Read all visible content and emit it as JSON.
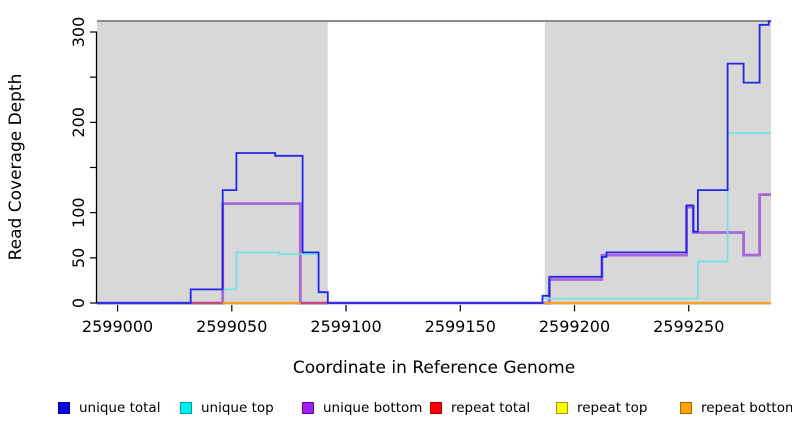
{
  "chart_data": {
    "type": "line",
    "subtype": "step-coverage",
    "xlabel": "Coordinate in Reference Genome",
    "ylabel": "Read Coverage Depth",
    "panel_bg": "#d8d8d8",
    "panel_border_top": "#6a6a6a",
    "masked_region": {
      "x_start": 2599092,
      "x_end": 2599187,
      "color": "#ffffff"
    },
    "x_scale": {
      "domain": [
        2598991,
        2599286
      ],
      "range": [
        97,
        771
      ]
    },
    "y_scale": {
      "domain": [
        0,
        300
      ],
      "range": [
        303,
        32
      ]
    },
    "x_ticks": [
      {
        "v": 2599000,
        "label": "2599000"
      },
      {
        "v": 2599050,
        "label": "2599050"
      },
      {
        "v": 2599100,
        "label": "2599100"
      },
      {
        "v": 2599150,
        "label": "2599150"
      },
      {
        "v": 2599200,
        "label": "2599200"
      },
      {
        "v": 2599250,
        "label": "2599250"
      }
    ],
    "y_ticks": [
      {
        "v": 0,
        "label": "0"
      },
      {
        "v": 50,
        "label": "50"
      },
      {
        "v": 100,
        "label": "100"
      },
      {
        "v": 150,
        "label": ""
      },
      {
        "v": 200,
        "label": "200"
      },
      {
        "v": 250,
        "label": ""
      },
      {
        "v": 300,
        "label": "300"
      }
    ],
    "draw_order": [
      "unique_bottom",
      "repeat_total",
      "repeat_top",
      "repeat_bottom",
      "unique_top",
      "unique_total"
    ],
    "series": {
      "unique_total": {
        "name": "unique total",
        "color": "#2525e8",
        "width": 1.8,
        "segments": [
          [
            [
              2598991,
              0
            ],
            [
              2599032,
              15
            ],
            [
              2599046,
              125
            ],
            [
              2599052,
              166
            ],
            [
              2599069,
              163
            ],
            [
              2599081,
              56
            ],
            [
              2599088,
              12
            ],
            [
              2599092,
              0
            ],
            [
              2599186,
              8
            ],
            [
              2599189,
              29
            ],
            [
              2599212,
              51
            ],
            [
              2599214,
              56
            ],
            [
              2599249,
              108
            ],
            [
              2599252,
              79
            ],
            [
              2599254,
              125
            ],
            [
              2599267,
              265
            ],
            [
              2599274,
              244
            ],
            [
              2599281,
              308
            ],
            [
              2599285,
              312
            ],
            [
              2599286,
              312
            ]
          ]
        ]
      },
      "unique_top": {
        "name": "unique top",
        "color": "#6ae4e4",
        "width": 1.6,
        "segments": [
          [
            [
              2598991,
              0
            ],
            [
              2599032,
              15
            ],
            [
              2599052,
              56
            ],
            [
              2599071,
              54
            ],
            [
              2599088,
              12
            ],
            [
              2599092,
              0
            ]
          ],
          [
            [
              2599186,
              5
            ],
            [
              2599254,
              46
            ],
            [
              2599267,
              188
            ],
            [
              2599286,
              188
            ]
          ]
        ]
      },
      "unique_bottom": {
        "name": "unique bottom",
        "color": "#a668d8",
        "width": 2.8,
        "segments": [
          [
            [
              2598991,
              0
            ],
            [
              2599046,
              110
            ],
            [
              2599080,
              0
            ],
            [
              2599189,
              26
            ],
            [
              2599212,
              53
            ],
            [
              2599249,
              106
            ],
            [
              2599252,
              78
            ],
            [
              2599274,
              53
            ],
            [
              2599281,
              120
            ],
            [
              2599286,
              120
            ]
          ]
        ]
      },
      "repeat_total": {
        "name": "repeat total",
        "color": "#cc4466",
        "width": 1.8,
        "segments": [
          [
            [
              2599032,
              0
            ],
            [
              2599092,
              0
            ]
          ]
        ]
      },
      "repeat_top": {
        "name": "repeat top",
        "color": "#ffff00",
        "width": 1.6,
        "segments": [
          [
            [
              2599046,
              0
            ],
            [
              2599080,
              0
            ]
          ],
          [
            [
              2599187,
              0
            ],
            [
              2599286,
              0
            ]
          ]
        ]
      },
      "repeat_bottom": {
        "name": "repeat bottom",
        "color": "#ffa022",
        "width": 2.2,
        "segments": [
          [
            [
              2599046,
              0
            ],
            [
              2599080,
              0
            ]
          ],
          [
            [
              2599187,
              0
            ],
            [
              2599286,
              0
            ]
          ]
        ]
      }
    },
    "legend": [
      {
        "label": "unique total",
        "fill": "#0000ee",
        "border": "#0000a0",
        "x": 58
      },
      {
        "label": "unique top",
        "fill": "#00eeee",
        "border": "#009b9b",
        "x": 180
      },
      {
        "label": "unique bottom",
        "fill": "#a020f0",
        "border": "#6d00ad",
        "x": 302
      },
      {
        "label": "repeat total",
        "fill": "#ff0000",
        "border": "#a00000",
        "x": 430
      },
      {
        "label": "repeat top",
        "fill": "#ffff00",
        "border": "#9b9b00",
        "x": 556
      },
      {
        "label": "repeat bottom",
        "fill": "#ffa500",
        "border": "#a96500",
        "x": 680
      }
    ]
  }
}
